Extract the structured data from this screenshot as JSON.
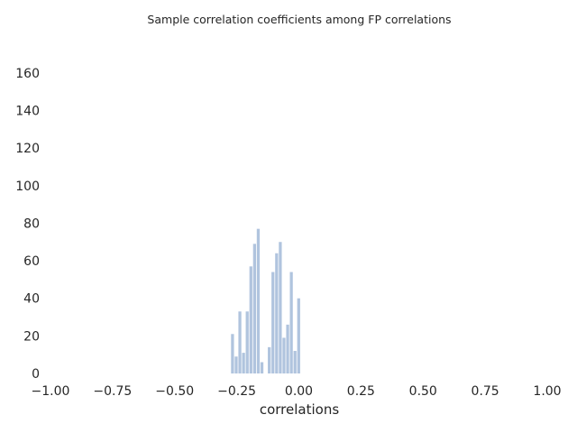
{
  "chart_data": {
    "type": "bar",
    "title": "Sample correlation coefficients among FP correlations",
    "xlabel": "correlations",
    "ylabel": "",
    "xlim": [
      -1.0,
      1.0
    ],
    "ylim": [
      0,
      170
    ],
    "grid": false,
    "bar_color": "#b0c4de",
    "xticks": [
      "−1.00",
      "−0.75",
      "−0.50",
      "−0.25",
      "0.00",
      "0.25",
      "0.50",
      "0.75",
      "1.00"
    ],
    "xtick_values": [
      -1.0,
      -0.75,
      -0.5,
      -0.25,
      0.0,
      0.25,
      0.5,
      0.75,
      1.0
    ],
    "yticks": [
      "0",
      "20",
      "40",
      "60",
      "80",
      "100",
      "120",
      "140",
      "160"
    ],
    "ytick_values": [
      0,
      20,
      40,
      60,
      80,
      100,
      120,
      140,
      160
    ],
    "bin_width": 0.0148,
    "bins": [
      {
        "start": -0.2731,
        "value": 21
      },
      {
        "start": -0.2583,
        "value": 9
      },
      {
        "start": -0.2435,
        "value": 33
      },
      {
        "start": -0.2287,
        "value": 11
      },
      {
        "start": -0.2139,
        "value": 33
      },
      {
        "start": -0.1991,
        "value": 57
      },
      {
        "start": -0.1843,
        "value": 69
      },
      {
        "start": -0.1694,
        "value": 77
      },
      {
        "start": -0.1546,
        "value": 6
      },
      {
        "start": -0.1398,
        "value": 0
      },
      {
        "start": -0.125,
        "value": 14
      },
      {
        "start": -0.1102,
        "value": 54
      },
      {
        "start": -0.0954,
        "value": 64
      },
      {
        "start": -0.0806,
        "value": 70
      },
      {
        "start": -0.0657,
        "value": 19
      },
      {
        "start": -0.0509,
        "value": 26
      },
      {
        "start": -0.0361,
        "value": 54
      },
      {
        "start": -0.0213,
        "value": 12
      },
      {
        "start": -0.0065,
        "value": 40
      }
    ]
  }
}
